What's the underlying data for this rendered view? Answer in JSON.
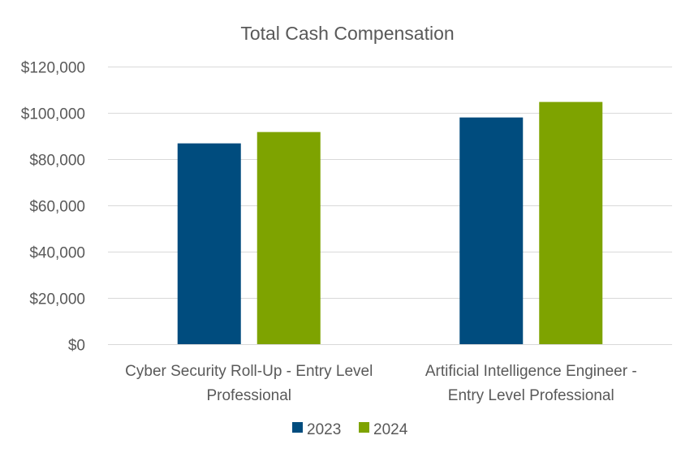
{
  "chart_data": {
    "type": "bar",
    "title": "Total Cash Compensation",
    "xlabel": "",
    "ylabel": "",
    "ylim": [
      0,
      120000
    ],
    "yticks": [
      0,
      20000,
      40000,
      60000,
      80000,
      100000,
      120000
    ],
    "ytick_labels": [
      "$0",
      "$20,000",
      "$40,000",
      "$60,000",
      "$80,000",
      "$100,000",
      "$120,000"
    ],
    "grid": true,
    "legend_position": "bottom",
    "categories": [
      [
        "Cyber Security Roll-Up - Entry Level",
        "Professional"
      ],
      [
        "Artificial Intelligence Engineer -",
        "Entry Level Professional"
      ]
    ],
    "series": [
      {
        "name": "2023",
        "color": "#004c7e",
        "values": [
          86800,
          98000
        ]
      },
      {
        "name": "2024",
        "color": "#7ea300",
        "values": [
          91700,
          104700
        ]
      }
    ]
  }
}
